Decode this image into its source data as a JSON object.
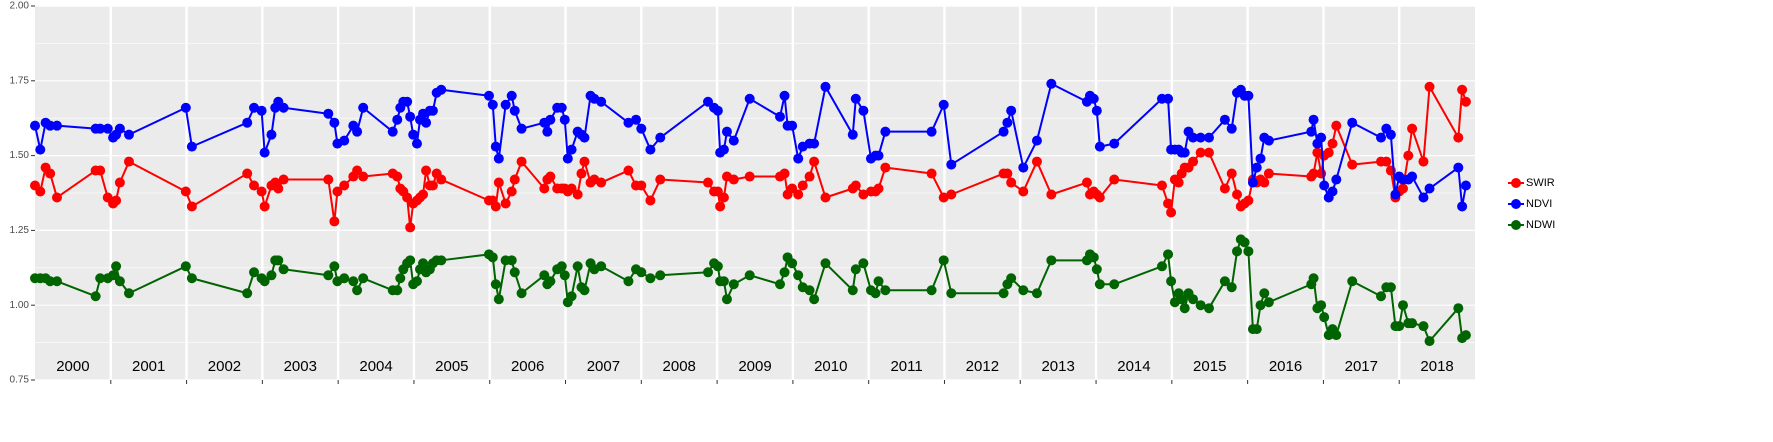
{
  "chart_data": {
    "type": "line",
    "xlim": [
      2000,
      2019
    ],
    "xticks": [
      2001,
      2002,
      2003,
      2004,
      2005,
      2006,
      2007,
      2008,
      2009,
      2010,
      2011,
      2012,
      2013,
      2014,
      2015,
      2016,
      2017,
      2018
    ],
    "categories": [
      "2000",
      "2001",
      "2002",
      "2003",
      "2004",
      "2005",
      "2006",
      "2007",
      "2008",
      "2009",
      "2010",
      "2011",
      "2012",
      "2013",
      "2014",
      "2015",
      "2016",
      "2017",
      "2018"
    ],
    "ylim": [
      0.75,
      2.0
    ],
    "yticks": [
      {
        "value": 0.75,
        "label": "0.75"
      },
      {
        "value": 1.0,
        "label": "1.00"
      },
      {
        "value": 1.25,
        "label": "1.25"
      },
      {
        "value": 1.5,
        "label": "1.50"
      },
      {
        "value": 1.75,
        "label": "1.75"
      },
      {
        "value": 2.0,
        "label": "2.00"
      }
    ],
    "grid": true,
    "legend": "right",
    "x": [
      2000.0,
      2000.07,
      2000.14,
      2000.2,
      2000.29,
      2000.8,
      2000.86,
      2000.96,
      2001.03,
      2001.07,
      2001.12,
      2001.24,
      2001.99,
      2002.07,
      2002.8,
      2002.89,
      2002.99,
      2003.03,
      2003.12,
      2003.17,
      2003.21,
      2003.28,
      2003.87,
      2003.95,
      2003.99,
      2004.08,
      2004.2,
      2004.25,
      2004.33,
      2004.72,
      2004.78,
      2004.82,
      2004.86,
      2004.91,
      2004.95,
      2004.99,
      2005.04,
      2005.08,
      2005.12,
      2005.16,
      2005.21,
      2005.25,
      2005.3,
      2005.36,
      2005.99,
      2006.04,
      2006.08,
      2006.12,
      2006.21,
      2006.29,
      2006.33,
      2006.42,
      2006.72,
      2006.76,
      2006.8,
      2006.89,
      2006.95,
      2006.99,
      2007.03,
      2007.08,
      2007.16,
      2007.21,
      2007.25,
      2007.33,
      2007.38,
      2007.47,
      2007.83,
      2007.93,
      2008.0,
      2008.12,
      2008.25,
      2008.88,
      2008.96,
      2009.01,
      2009.04,
      2009.09,
      2009.13,
      2009.22,
      2009.43,
      2009.83,
      2009.89,
      2009.93,
      2009.99,
      2010.07,
      2010.13,
      2010.22,
      2010.28,
      2010.43,
      2010.79,
      2010.83,
      2010.93,
      2011.03,
      2011.09,
      2011.13,
      2011.22,
      2011.83,
      2011.99,
      2012.09,
      2012.78,
      2012.83,
      2012.88,
      2013.04,
      2013.22,
      2013.41,
      2013.88,
      2013.92,
      2013.97,
      2014.01,
      2014.05,
      2014.24,
      2014.87,
      2014.95,
      2014.99,
      2015.04,
      2015.09,
      2015.13,
      2015.17,
      2015.22,
      2015.28,
      2015.38,
      2015.49,
      2015.7,
      2015.79,
      2015.86,
      2015.91,
      2015.96,
      2016.01,
      2016.07,
      2016.12,
      2016.17,
      2016.22,
      2016.28,
      2016.84,
      2016.87,
      2016.92,
      2016.97,
      2017.01,
      2017.07,
      2017.12,
      2017.17,
      2017.38,
      2017.76,
      2017.83,
      2017.89,
      2017.95,
      2018.0,
      2018.05,
      2018.12,
      2018.17,
      2018.32,
      2018.4,
      2018.78,
      2018.83,
      2018.88
    ],
    "series": [
      {
        "name": "SWIR",
        "color": "#ff0000",
        "values": [
          1.4,
          1.38,
          1.46,
          1.44,
          1.36,
          1.45,
          1.45,
          1.36,
          1.34,
          1.35,
          1.41,
          1.48,
          1.38,
          1.33,
          1.44,
          1.4,
          1.38,
          1.33,
          1.4,
          1.41,
          1.39,
          1.42,
          1.42,
          1.28,
          1.38,
          1.4,
          1.43,
          1.45,
          1.43,
          1.44,
          1.43,
          1.39,
          1.38,
          1.36,
          1.26,
          1.34,
          1.35,
          1.36,
          1.37,
          1.45,
          1.4,
          1.4,
          1.44,
          1.42,
          1.35,
          1.35,
          1.33,
          1.41,
          1.34,
          1.38,
          1.42,
          1.48,
          1.39,
          1.42,
          1.43,
          1.39,
          1.39,
          1.39,
          1.38,
          1.39,
          1.37,
          1.44,
          1.48,
          1.41,
          1.42,
          1.41,
          1.45,
          1.4,
          1.4,
          1.35,
          1.42,
          1.41,
          1.38,
          1.38,
          1.33,
          1.36,
          1.43,
          1.42,
          1.43,
          1.43,
          1.44,
          1.37,
          1.39,
          1.37,
          1.4,
          1.43,
          1.48,
          1.36,
          1.39,
          1.4,
          1.37,
          1.38,
          1.38,
          1.39,
          1.46,
          1.44,
          1.36,
          1.37,
          1.44,
          1.44,
          1.41,
          1.38,
          1.48,
          1.37,
          1.41,
          1.37,
          1.38,
          1.37,
          1.36,
          1.42,
          1.4,
          1.34,
          1.31,
          1.42,
          1.41,
          1.44,
          1.46,
          1.46,
          1.48,
          1.51,
          1.51,
          1.39,
          1.44,
          1.37,
          1.33,
          1.34,
          1.35,
          1.42,
          1.41,
          1.42,
          1.41,
          1.44,
          1.43,
          1.44,
          1.51,
          1.44,
          1.5,
          1.51,
          1.54,
          1.6,
          1.47,
          1.48,
          1.48,
          1.45,
          1.36,
          1.38,
          1.39,
          1.5,
          1.59,
          1.48,
          1.73,
          1.56,
          1.72,
          1.68
        ]
      },
      {
        "name": "NDVI",
        "color": "#0000ff",
        "values": [
          1.6,
          1.52,
          1.61,
          1.6,
          1.6,
          1.59,
          1.59,
          1.59,
          1.56,
          1.57,
          1.59,
          1.57,
          1.66,
          1.53,
          1.61,
          1.66,
          1.65,
          1.51,
          1.57,
          1.66,
          1.68,
          1.66,
          1.64,
          1.61,
          1.54,
          1.55,
          1.6,
          1.58,
          1.66,
          1.58,
          1.62,
          1.66,
          1.68,
          1.68,
          1.63,
          1.57,
          1.54,
          1.62,
          1.64,
          1.61,
          1.65,
          1.65,
          1.71,
          1.72,
          1.7,
          1.67,
          1.53,
          1.49,
          1.67,
          1.7,
          1.65,
          1.59,
          1.61,
          1.58,
          1.62,
          1.66,
          1.66,
          1.62,
          1.49,
          1.52,
          1.58,
          1.57,
          1.56,
          1.7,
          1.69,
          1.68,
          1.61,
          1.62,
          1.59,
          1.52,
          1.56,
          1.68,
          1.66,
          1.65,
          1.51,
          1.52,
          1.58,
          1.55,
          1.69,
          1.63,
          1.7,
          1.6,
          1.6,
          1.49,
          1.53,
          1.54,
          1.54,
          1.73,
          1.57,
          1.69,
          1.65,
          1.49,
          1.5,
          1.5,
          1.58,
          1.58,
          1.67,
          1.47,
          1.58,
          1.61,
          1.65,
          1.46,
          1.55,
          1.74,
          1.68,
          1.7,
          1.69,
          1.65,
          1.53,
          1.54,
          1.69,
          1.69,
          1.52,
          1.52,
          1.52,
          1.51,
          1.51,
          1.58,
          1.56,
          1.56,
          1.56,
          1.62,
          1.59,
          1.71,
          1.72,
          1.7,
          1.7,
          1.41,
          1.46,
          1.49,
          1.56,
          1.55,
          1.58,
          1.62,
          1.54,
          1.56,
          1.4,
          1.36,
          1.38,
          1.42,
          1.61,
          1.56,
          1.59,
          1.57,
          1.37,
          1.43,
          1.42,
          1.42,
          1.43,
          1.36,
          1.39,
          1.46,
          1.33,
          1.4
        ]
      },
      {
        "name": "NDWI",
        "color": "#006400",
        "values": [
          1.09,
          1.09,
          1.09,
          1.08,
          1.08,
          1.03,
          1.09,
          1.09,
          1.1,
          1.13,
          1.08,
          1.04,
          1.13,
          1.09,
          1.04,
          1.11,
          1.09,
          1.08,
          1.1,
          1.15,
          1.15,
          1.12,
          1.1,
          1.13,
          1.08,
          1.09,
          1.08,
          1.05,
          1.09,
          1.05,
          1.05,
          1.09,
          1.12,
          1.14,
          1.15,
          1.07,
          1.08,
          1.12,
          1.14,
          1.11,
          1.12,
          1.14,
          1.15,
          1.15,
          1.17,
          1.16,
          1.07,
          1.02,
          1.15,
          1.15,
          1.11,
          1.04,
          1.1,
          1.07,
          1.08,
          1.12,
          1.13,
          1.1,
          1.01,
          1.03,
          1.13,
          1.06,
          1.05,
          1.14,
          1.12,
          1.13,
          1.08,
          1.12,
          1.11,
          1.09,
          1.1,
          1.11,
          1.14,
          1.13,
          1.08,
          1.08,
          1.02,
          1.07,
          1.1,
          1.07,
          1.11,
          1.16,
          1.14,
          1.1,
          1.06,
          1.05,
          1.02,
          1.14,
          1.05,
          1.12,
          1.14,
          1.05,
          1.04,
          1.08,
          1.05,
          1.05,
          1.15,
          1.04,
          1.04,
          1.07,
          1.09,
          1.05,
          1.04,
          1.15,
          1.15,
          1.17,
          1.16,
          1.12,
          1.07,
          1.07,
          1.13,
          1.17,
          1.08,
          1.01,
          1.04,
          1.02,
          0.99,
          1.04,
          1.02,
          1.0,
          0.99,
          1.08,
          1.06,
          1.18,
          1.22,
          1.21,
          1.18,
          0.92,
          0.92,
          1.0,
          1.04,
          1.01,
          1.07,
          1.09,
          0.99,
          1.0,
          0.96,
          0.9,
          0.92,
          0.9,
          1.08,
          1.03,
          1.06,
          1.06,
          0.93,
          0.93,
          1.0,
          0.94,
          0.94,
          0.93,
          0.88,
          0.99,
          0.89,
          0.9
        ]
      }
    ]
  }
}
